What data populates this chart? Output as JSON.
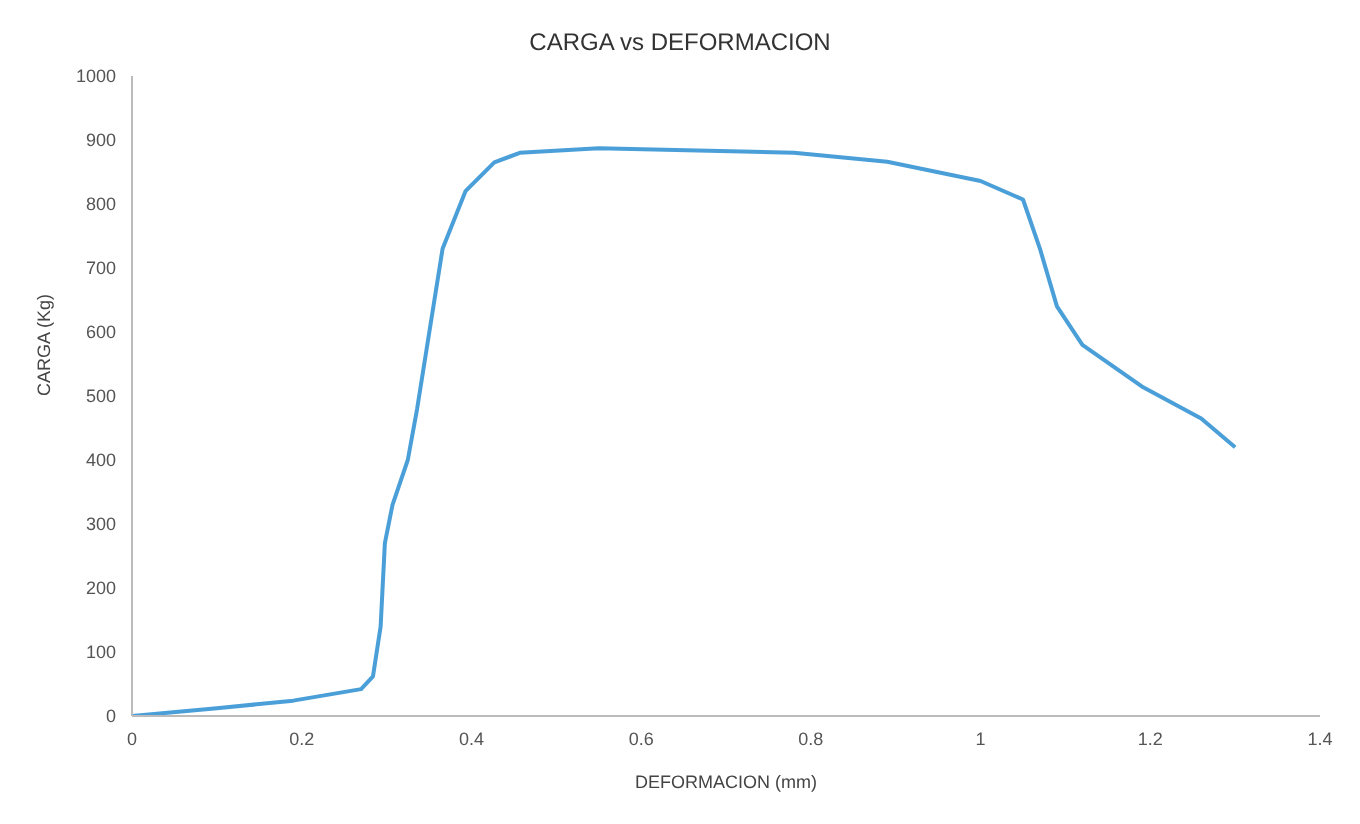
{
  "chart_data": {
    "type": "line",
    "title": "CARGA vs DEFORMACION",
    "xlabel": "DEFORMACION (mm)",
    "ylabel": "CARGA (Kg)",
    "series": [
      {
        "color": "#4a9fd8",
        "x": [
          0,
          0.1,
          0.19,
          0.27,
          0.284,
          0.293,
          0.298,
          0.307,
          0.325,
          0.336,
          0.348,
          0.366,
          0.393,
          0.427,
          0.457,
          0.55,
          0.78,
          0.89,
          1.0,
          1.05,
          1.07,
          1.09,
          1.12,
          1.19,
          1.26,
          1.3
        ],
        "values": [
          0,
          12,
          24,
          42,
          62,
          140,
          270,
          330,
          400,
          480,
          580,
          730,
          820,
          865,
          880,
          887,
          880,
          866,
          836,
          807,
          730,
          640,
          580,
          515,
          465,
          420
        ]
      }
    ],
    "xlim": [
      0,
      1.4
    ],
    "xticks": [
      0,
      0.2,
      0.4,
      0.6,
      0.8,
      1,
      1.2,
      1.4
    ],
    "ylim": [
      0,
      1000
    ],
    "yticks": [
      0,
      100,
      200,
      300,
      400,
      500,
      600,
      700,
      800,
      900,
      1000
    ],
    "grid": false,
    "marker": "none",
    "line_style": "solid"
  }
}
